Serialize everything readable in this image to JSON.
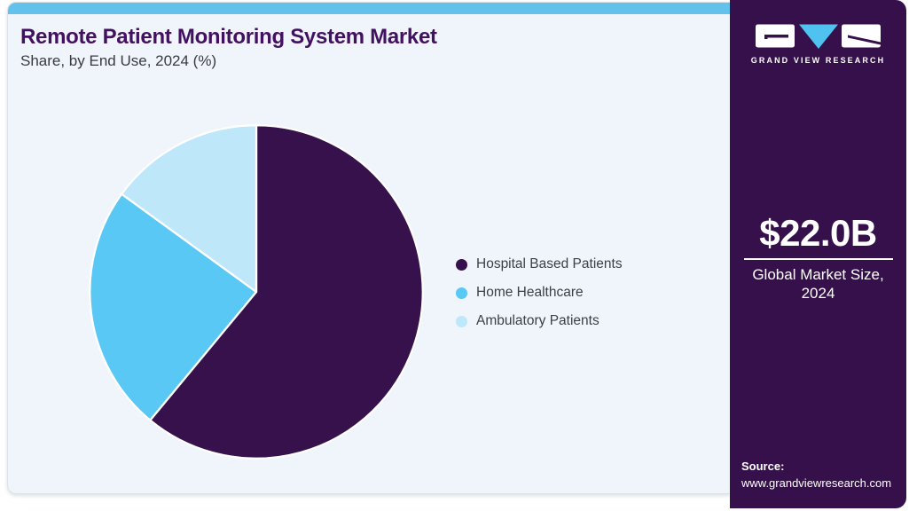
{
  "header": {
    "title": "Remote Patient Monitoring System Market",
    "subtitle": "Share, by End Use, 2024 (%)"
  },
  "chart_data": {
    "type": "pie",
    "title": "Remote Patient Monitoring System Market Share, by End Use, 2024 (%)",
    "categories": [
      "Hospital Based Patients",
      "Home Healthcare",
      "Ambulatory Patients"
    ],
    "values": [
      61,
      24,
      15
    ],
    "unit": "%",
    "colors": [
      "#36114B",
      "#5AC8F5",
      "#BEE8FA"
    ],
    "start_angle_deg": 0,
    "direction": "clockwise",
    "legend_position": "right"
  },
  "sidebar": {
    "logo_text": "GRAND VIEW RESEARCH",
    "market_size": "$22.0B",
    "market_size_label_line1": "Global Market Size,",
    "market_size_label_line2": "2024",
    "source_label": "Source:",
    "source_url": "www.grandviewresearch.com"
  },
  "colors": {
    "topbar": "#62C2EC",
    "sidebar_bg": "#36104B",
    "card_bg": "#EFF5FA",
    "title_text": "#431161",
    "logo_triangle": "#4FC2F0",
    "logo_notch": "#36104B"
  }
}
